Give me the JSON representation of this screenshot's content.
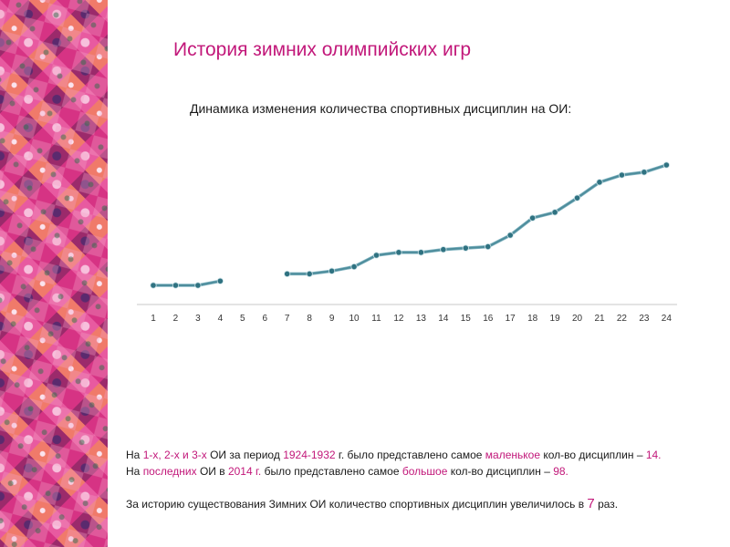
{
  "slide": {
    "title": "История зимних олимпийских игр",
    "subtitle": "Динамика изменения количества спортивных дисциплин на ОИ:",
    "accent_color": "#c2187a",
    "sidebar_pattern": "patchwork-quilt-decor"
  },
  "notes": [
    [
      {
        "t": "На ",
        "hl": false
      },
      {
        "t": "1-х, 2-х и 3-х",
        "hl": true
      },
      {
        "t": " ОИ за период ",
        "hl": false
      },
      {
        "t": "1924-1932",
        "hl": true
      },
      {
        "t": " г. было представлено самое ",
        "hl": false
      },
      {
        "t": "маленькое",
        "hl": true
      },
      {
        "t": " кол-во дисциплин – ",
        "hl": false
      },
      {
        "t": "14.",
        "hl": true
      }
    ],
    [
      {
        "t": "На ",
        "hl": false
      },
      {
        "t": "последних",
        "hl": true
      },
      {
        "t": " ОИ в ",
        "hl": false
      },
      {
        "t": "2014 г.",
        "hl": true
      },
      {
        "t": " было представлено самое ",
        "hl": false
      },
      {
        "t": "большое",
        "hl": true
      },
      {
        "t": " кол-во дисциплин – ",
        "hl": false
      },
      {
        "t": "98.",
        "hl": true
      }
    ],
    [],
    [
      {
        "t": "За историю существования Зимних ОИ количество спортивных дисциплин увеличилось  в ",
        "hl": false
      },
      {
        "t": "7",
        "hl": true,
        "big": true
      },
      {
        "t": " раз.",
        "hl": false
      }
    ]
  ],
  "chart_data": {
    "type": "line",
    "title": "",
    "xlabel": "",
    "ylabel": "",
    "categories": [
      "1",
      "2",
      "3",
      "4",
      "5",
      "6",
      "7",
      "8",
      "9",
      "10",
      "11",
      "12",
      "13",
      "14",
      "15",
      "16",
      "17",
      "18",
      "19",
      "20",
      "21",
      "22",
      "23",
      "24"
    ],
    "series": [
      {
        "values": [
          14,
          14,
          14,
          17,
          null,
          null,
          22,
          22,
          24,
          27,
          35,
          37,
          37,
          39,
          40,
          41,
          49,
          61,
          65,
          75,
          86,
          91,
          93,
          98
        ]
      }
    ],
    "ylim": [
      0,
      105
    ],
    "grid": false,
    "legend": "none",
    "line_color": "#4e8d9c",
    "marker_color": "#2f7281"
  }
}
